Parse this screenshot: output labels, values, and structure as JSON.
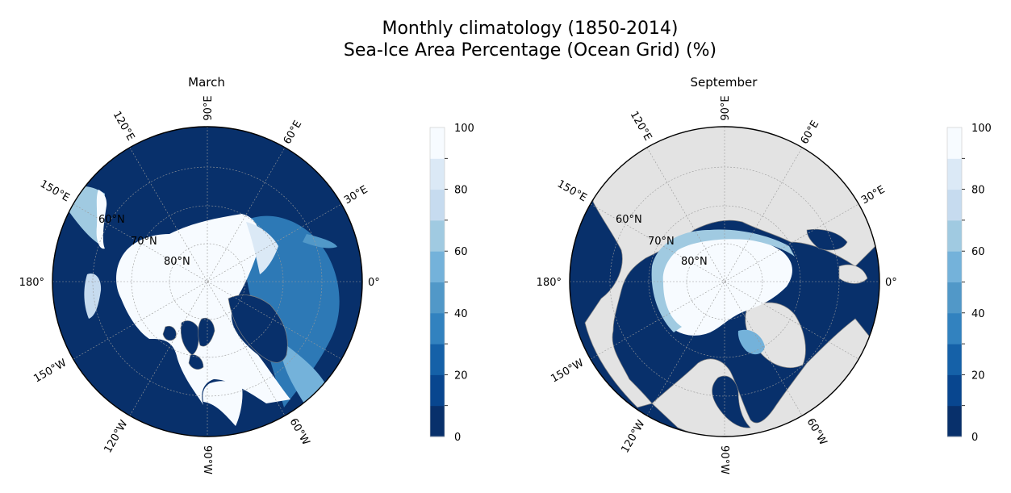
{
  "title_line1": "Monthly climatology (1850-2014)",
  "title_line2": "Sea-Ice Area Percentage (Ocean Grid) (%)",
  "colors": {
    "levels": [
      "#08306b",
      "#08468f",
      "#1561a8",
      "#3282bf",
      "#5198c8",
      "#74b2da",
      "#a0cae1",
      "#c6dbef",
      "#dbe9f6",
      "#f7fbff"
    ],
    "land": "#e3e3e3",
    "coast": "#7f7f7f"
  },
  "panels": [
    {
      "title": "March",
      "lon_labels": [
        "90°E",
        "60°E",
        "30°E",
        "0°",
        "60°W",
        "90°W",
        "120°W",
        "150°W",
        "180°",
        "150°E",
        "120°E"
      ],
      "lat_labels": [
        "60°N",
        "70°N",
        "80°N"
      ]
    },
    {
      "title": "September",
      "lon_labels": [
        "90°E",
        "60°E",
        "30°E",
        "0°",
        "60°W",
        "90°W",
        "120°W",
        "150°W",
        "180°",
        "150°E",
        "120°E"
      ],
      "lat_labels": [
        "60°N",
        "70°N",
        "80°N"
      ]
    }
  ],
  "colorbar": {
    "ticks": [
      "100",
      "80",
      "60",
      "40",
      "20",
      "0"
    ]
  }
}
